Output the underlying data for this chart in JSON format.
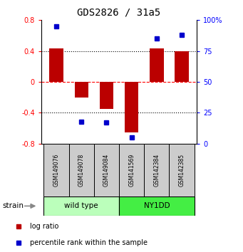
{
  "title": "GDS2826 / 31a5",
  "samples": [
    "GSM149076",
    "GSM149078",
    "GSM149084",
    "GSM141569",
    "GSM142384",
    "GSM142385"
  ],
  "log_ratio": [
    0.43,
    -0.2,
    -0.35,
    -0.65,
    0.43,
    0.4
  ],
  "percentile_rank": [
    95,
    18,
    17,
    5,
    85,
    88
  ],
  "groups": [
    {
      "label": "wild type",
      "indices": [
        0,
        1,
        2
      ],
      "color": "#bbffbb"
    },
    {
      "label": "NY1DD",
      "indices": [
        3,
        4,
        5
      ],
      "color": "#44ee44"
    }
  ],
  "ylim_left": [
    -0.8,
    0.8
  ],
  "ylim_right": [
    0,
    100
  ],
  "yticks_left": [
    -0.8,
    -0.4,
    0.0,
    0.4,
    0.8
  ],
  "yticks_right": [
    0,
    25,
    50,
    75,
    100
  ],
  "ytick_labels_right": [
    "0",
    "25",
    "50",
    "75",
    "100%"
  ],
  "bar_color": "#bb0000",
  "dot_color": "#0000cc",
  "bar_width": 0.55,
  "dotted_lines": [
    -0.4,
    0.4
  ],
  "sample_box_color": "#cccccc",
  "legend_labels": [
    "log ratio",
    "percentile rank within the sample"
  ],
  "legend_colors": [
    "#bb0000",
    "#0000cc"
  ]
}
